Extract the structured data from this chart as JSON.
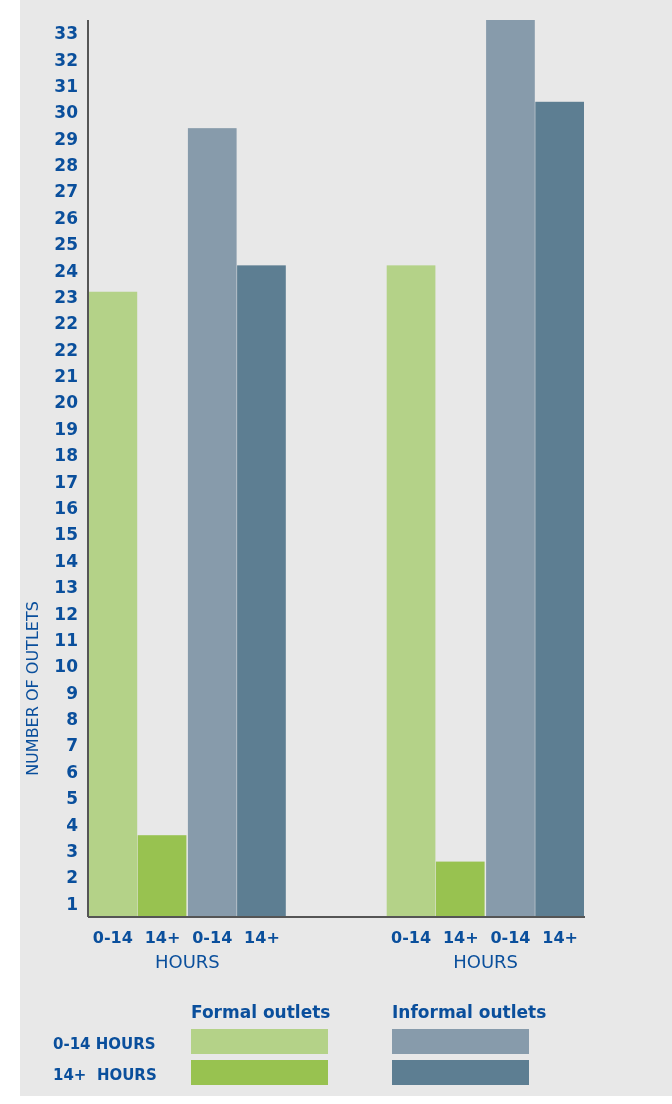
{
  "chart_data": {
    "type": "bar",
    "ylabel": "NUMBER OF OUTLETS",
    "categories": [
      "0-14",
      "14+",
      "0-14",
      "14+",
      null,
      null,
      "0-14",
      "14+",
      "0-14",
      "14+"
    ],
    "series": [
      {
        "color": "#b4d288",
        "values": [
          23.7,
          null,
          null,
          null,
          null,
          null,
          24.7,
          null,
          null,
          null
        ]
      },
      {
        "color": "#98c250",
        "values": [
          null,
          3.1,
          null,
          null,
          null,
          null,
          null,
          2.1,
          null,
          null
        ]
      },
      {
        "color": "#879bab",
        "values": [
          null,
          null,
          29.9,
          null,
          null,
          null,
          null,
          null,
          34.0,
          null
        ]
      },
      {
        "color": "#5d7e92",
        "values": [
          null,
          null,
          null,
          24.7,
          null,
          null,
          null,
          null,
          null,
          30.9
        ]
      }
    ],
    "ylim": [
      0,
      34
    ],
    "yticks": [
      {
        "value": 0.5,
        "label": "1"
      },
      {
        "value": 1.5,
        "label": "2"
      },
      {
        "value": 2.5,
        "label": "3"
      },
      {
        "value": 3.5,
        "label": "4"
      },
      {
        "value": 4.5,
        "label": "5"
      },
      {
        "value": 5.5,
        "label": "6"
      },
      {
        "value": 6.5,
        "label": "7"
      },
      {
        "value": 7.5,
        "label": "8"
      },
      {
        "value": 8.5,
        "label": "9"
      },
      {
        "value": 9.5,
        "label": "10"
      },
      {
        "value": 10.5,
        "label": "11"
      },
      {
        "value": 11.5,
        "label": "12"
      },
      {
        "value": 12.5,
        "label": "13"
      },
      {
        "value": 13.5,
        "label": "14"
      },
      {
        "value": 14.5,
        "label": "15"
      },
      {
        "value": 15.5,
        "label": "16"
      },
      {
        "value": 16.5,
        "label": "17"
      },
      {
        "value": 17.5,
        "label": "18"
      },
      {
        "value": 18.5,
        "label": "19"
      },
      {
        "value": 19.5,
        "label": "20"
      },
      {
        "value": 20.5,
        "label": "21"
      },
      {
        "value": 21.5,
        "label": "22"
      },
      {
        "value": 22.5,
        "label": "22"
      },
      {
        "value": 23.5,
        "label": "23"
      },
      {
        "value": 24.5,
        "label": "24"
      },
      {
        "value": 25.5,
        "label": "25"
      },
      {
        "value": 26.5,
        "label": "26"
      },
      {
        "value": 27.5,
        "label": "27"
      },
      {
        "value": 28.5,
        "label": "28"
      },
      {
        "value": 29.5,
        "label": "29"
      },
      {
        "value": 30.5,
        "label": "30"
      },
      {
        "value": 31.5,
        "label": "31"
      },
      {
        "value": 32.5,
        "label": "32"
      },
      {
        "value": 33.5,
        "label": "33"
      }
    ],
    "annotations": [
      "HOURS",
      "HOURS",
      "Formal outlets",
      "Informal outlets",
      "0-14 HOURS",
      "14+  HOURS"
    ],
    "grid": false
  }
}
